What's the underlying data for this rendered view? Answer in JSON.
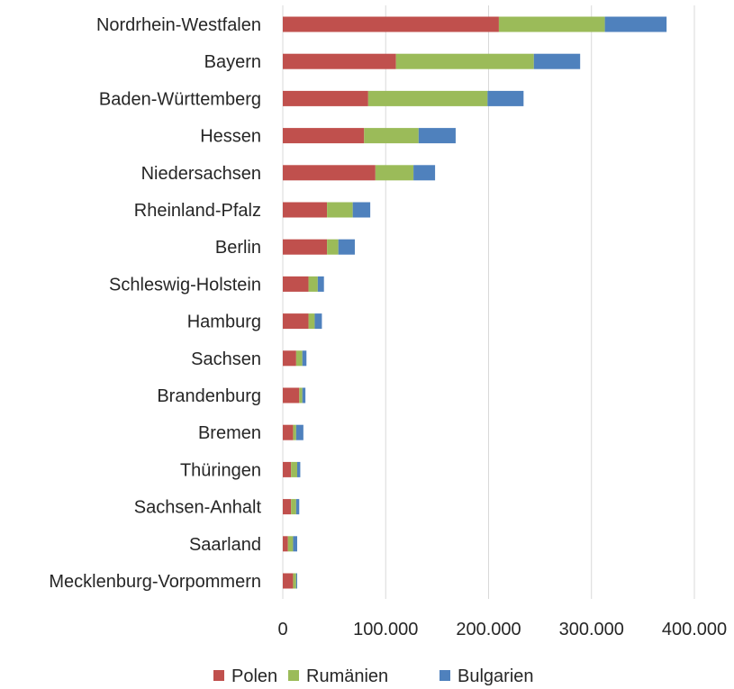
{
  "chart_data": {
    "type": "bar",
    "orientation": "horizontal",
    "stacked": true,
    "title": "",
    "xlabel": "",
    "ylabel": "",
    "xlim": [
      0,
      400000
    ],
    "grid": "vertical gridlines",
    "legend_position": "bottom",
    "categories": [
      "Nordrhein-Westfalen",
      "Bayern",
      "Baden-Württemberg",
      "Hessen",
      "Niedersachsen",
      "Rheinland-Pfalz",
      "Berlin",
      "Schleswig-Holstein",
      "Hamburg",
      "Sachsen",
      "Brandenburg",
      "Bremen",
      "Thüringen",
      "Sachsen-Anhalt",
      "Saarland",
      "Mecklenburg-Vorpommern"
    ],
    "series": [
      {
        "name": "Polen",
        "color": "#c0504d",
        "values": [
          210000,
          110000,
          83000,
          79000,
          90000,
          43000,
          43000,
          25000,
          25000,
          13000,
          16000,
          10000,
          8000,
          8000,
          5000,
          10000
        ]
      },
      {
        "name": "Rumänien",
        "color": "#9bbb59",
        "values": [
          103000,
          134000,
          116000,
          53000,
          37000,
          25000,
          11000,
          9000,
          6000,
          6000,
          3000,
          3000,
          6000,
          5000,
          5000,
          3000
        ]
      },
      {
        "name": "Bulgarien",
        "color": "#4f81bd",
        "values": [
          60000,
          45000,
          35000,
          36000,
          21000,
          17000,
          16000,
          6000,
          7000,
          4000,
          3000,
          7000,
          3000,
          3000,
          4000,
          1000
        ]
      }
    ],
    "ticks": [
      {
        "value": 0,
        "label": "0"
      },
      {
        "value": 100000,
        "label": "100.000"
      },
      {
        "value": 200000,
        "label": "200.000"
      },
      {
        "value": 300000,
        "label": "300.000"
      },
      {
        "value": 400000,
        "label": "400.000"
      }
    ]
  }
}
